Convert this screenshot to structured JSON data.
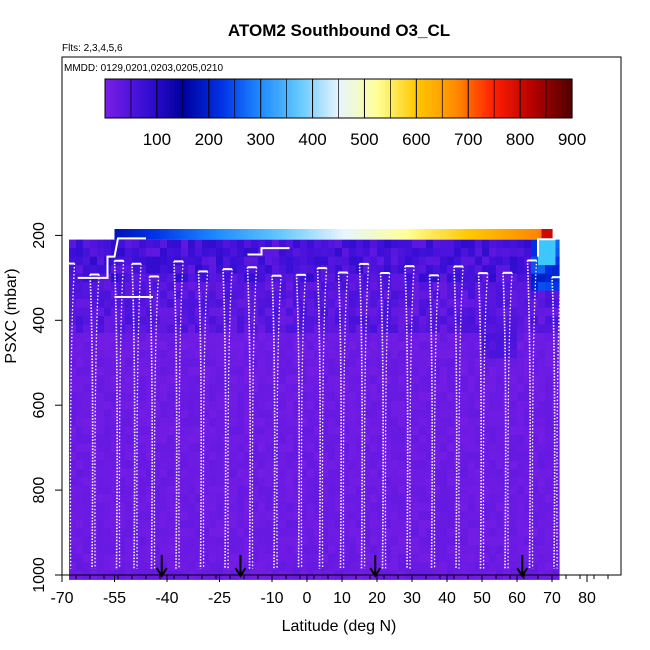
{
  "chart_data": {
    "type": "heatmap",
    "title": "ATOM2 Southbound O3_CL",
    "subtitle_flights": "Flts: 2,3,4,5,6",
    "subtitle_dates": "MMDD: 0129,0201,0203,0205,0210",
    "xlabel": "Latitude (deg N)",
    "ylabel": "PSXC (mbar)",
    "xlim": [
      -70,
      90
    ],
    "ylim": [
      1000,
      0
    ],
    "x_ticks": [
      -70,
      -55,
      -40,
      -25,
      -10,
      0,
      10,
      20,
      30,
      40,
      50,
      60,
      70,
      80
    ],
    "x_tick_labels": [
      "-70",
      "-55",
      "-40",
      "-25",
      "-10",
      "0",
      "10",
      "20",
      "30",
      "40",
      "50",
      "60",
      "70",
      "80"
    ],
    "y_ticks": [
      200,
      400,
      600,
      800,
      1000
    ],
    "y_tick_labels": [
      "200",
      "400",
      "600",
      "800",
      "1000"
    ],
    "colorbar": {
      "range": [
        0,
        900
      ],
      "tick_values": [
        100,
        200,
        300,
        400,
        500,
        600,
        700,
        800,
        900
      ],
      "tick_labels": [
        "100",
        "200",
        "300",
        "400",
        "500",
        "600",
        "700",
        "800",
        "900"
      ],
      "colors": [
        "#7a1ee6",
        "#3b0fd8",
        "#00009e",
        "#0032e6",
        "#1e8cff",
        "#64c8ff",
        "#e6f5ff",
        "#ffff96",
        "#ffc800",
        "#ff8c00",
        "#ff1e00",
        "#b40000",
        "#500000"
      ]
    },
    "data_extent": {
      "lat_min": -68,
      "lat_max": 71,
      "p_top": 210,
      "p_bottom": 1000
    },
    "band_top": {
      "p_top": 185,
      "p_bottom": 210,
      "lat_min": -55,
      "lat_max": 70
    },
    "profiles_lat": [
      -69,
      -62,
      -55,
      -50,
      -45,
      -38,
      -31,
      -24,
      -17,
      -10,
      -3,
      3,
      9,
      15,
      21,
      28,
      35,
      42,
      49,
      56,
      63,
      70
    ],
    "arrows_lat": [
      -41.5,
      -19,
      19.5,
      61.5
    ],
    "bottom_ticks_lat": [
      -70,
      -66,
      -62,
      -58,
      -54,
      -50,
      -46,
      -42,
      -38,
      -34,
      -30,
      -26,
      -22,
      -18,
      -14,
      -10,
      -6,
      -2,
      2,
      6,
      10,
      14,
      18,
      22,
      26,
      30,
      34,
      38,
      42,
      46,
      50,
      54,
      58,
      62,
      66,
      70,
      74,
      78,
      82,
      86,
      90
    ]
  }
}
